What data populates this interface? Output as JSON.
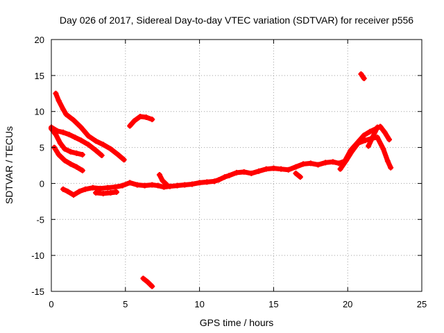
{
  "chart_data": {
    "type": "scatter",
    "title": "Day 026 of 2017, Sidereal Day-to-day VTEC variation (SDTVAR) for receiver p556",
    "xlabel": "GPS time / hours",
    "ylabel": "SDTVAR / TECUs",
    "xlim": [
      0,
      25
    ],
    "ylim": [
      -15,
      20
    ],
    "xticks": [
      0,
      5,
      10,
      15,
      20,
      25
    ],
    "xtick_labels": [
      "0",
      "5",
      "10",
      "15",
      "20",
      "25"
    ],
    "yticks": [
      -15,
      -10,
      -5,
      0,
      5,
      10,
      15,
      20
    ],
    "ytick_labels": [
      "-15",
      "-10",
      "-5",
      "0",
      "5",
      "10",
      "15",
      "20"
    ],
    "grid": true,
    "legend": "none",
    "marker_color": "#ff0000",
    "series": [
      {
        "name": "track-1",
        "points": [
          [
            0.3,
            12.5
          ],
          [
            0.5,
            11.5
          ],
          [
            0.8,
            10.3
          ],
          [
            1.0,
            9.6
          ],
          [
            1.5,
            8.8
          ],
          [
            2.0,
            7.8
          ],
          [
            2.5,
            6.6
          ],
          [
            3.0,
            5.9
          ],
          [
            3.5,
            5.4
          ],
          [
            4.0,
            4.8
          ],
          [
            4.5,
            4.0
          ],
          [
            4.9,
            3.3
          ]
        ]
      },
      {
        "name": "track-2",
        "points": [
          [
            0.0,
            7.8
          ],
          [
            0.4,
            7.3
          ],
          [
            0.8,
            7.1
          ],
          [
            1.2,
            6.8
          ],
          [
            1.6,
            6.4
          ],
          [
            2.0,
            6.0
          ],
          [
            2.5,
            5.4
          ],
          [
            3.0,
            4.6
          ],
          [
            3.4,
            3.9
          ]
        ]
      },
      {
        "name": "track-3",
        "points": [
          [
            0.0,
            7.6
          ],
          [
            0.3,
            6.8
          ],
          [
            0.6,
            5.6
          ],
          [
            0.9,
            4.8
          ],
          [
            1.3,
            4.4
          ],
          [
            1.7,
            4.2
          ],
          [
            2.1,
            4.0
          ]
        ]
      },
      {
        "name": "track-4",
        "points": [
          [
            0.2,
            5.0
          ],
          [
            0.5,
            4.0
          ],
          [
            0.9,
            3.2
          ],
          [
            1.3,
            2.7
          ],
          [
            1.7,
            2.3
          ],
          [
            2.1,
            1.8
          ]
        ]
      },
      {
        "name": "track-5",
        "points": [
          [
            5.3,
            8.0
          ],
          [
            5.6,
            8.7
          ],
          [
            6.0,
            9.3
          ],
          [
            6.4,
            9.2
          ],
          [
            6.8,
            8.9
          ]
        ]
      },
      {
        "name": "track-6",
        "points": [
          [
            6.2,
            -13.2
          ],
          [
            6.5,
            -13.7
          ],
          [
            6.8,
            -14.3
          ]
        ]
      },
      {
        "name": "track-7",
        "points": [
          [
            20.9,
            15.2
          ],
          [
            21.1,
            14.6
          ]
        ]
      },
      {
        "name": "track-8",
        "points": [
          [
            0.8,
            -0.8
          ],
          [
            1.1,
            -1.1
          ],
          [
            1.5,
            -1.6
          ],
          [
            1.9,
            -1.1
          ],
          [
            2.3,
            -0.8
          ],
          [
            2.8,
            -0.6
          ],
          [
            3.3,
            -0.7
          ],
          [
            3.8,
            -0.6
          ],
          [
            4.3,
            -0.5
          ],
          [
            4.8,
            -0.3
          ],
          [
            5.3,
            0.1
          ],
          [
            5.8,
            -0.2
          ],
          [
            6.3,
            -0.3
          ],
          [
            6.8,
            -0.2
          ],
          [
            7.2,
            -0.3
          ],
          [
            7.6,
            -0.5
          ],
          [
            8.0,
            -0.4
          ],
          [
            8.5,
            -0.3
          ],
          [
            9.0,
            -0.2
          ],
          [
            9.5,
            -0.1
          ],
          [
            10.0,
            0.1
          ],
          [
            10.5,
            0.2
          ],
          [
            11.0,
            0.3
          ],
          [
            11.3,
            0.5
          ],
          [
            11.7,
            0.9
          ],
          [
            12.0,
            1.1
          ],
          [
            12.5,
            1.5
          ],
          [
            13.0,
            1.6
          ],
          [
            13.5,
            1.4
          ],
          [
            14.0,
            1.7
          ],
          [
            14.5,
            2.0
          ],
          [
            15.0,
            2.1
          ],
          [
            15.5,
            2.0
          ],
          [
            16.0,
            1.9
          ],
          [
            16.5,
            2.3
          ],
          [
            17.0,
            2.7
          ],
          [
            17.5,
            2.8
          ],
          [
            18.0,
            2.6
          ],
          [
            18.5,
            2.9
          ],
          [
            19.0,
            3.0
          ],
          [
            19.4,
            2.8
          ],
          [
            19.8,
            3.1
          ],
          [
            20.2,
            4.6
          ],
          [
            20.5,
            5.3
          ],
          [
            20.8,
            6.0
          ],
          [
            21.1,
            6.7
          ],
          [
            21.5,
            7.2
          ],
          [
            21.9,
            7.6
          ],
          [
            22.2,
            7.9
          ],
          [
            22.5,
            7.1
          ],
          [
            22.8,
            6.1
          ]
        ]
      },
      {
        "name": "track-9",
        "points": [
          [
            3.0,
            -1.3
          ],
          [
            3.5,
            -1.4
          ],
          [
            4.0,
            -1.3
          ],
          [
            4.4,
            -1.2
          ]
        ]
      },
      {
        "name": "track-10",
        "points": [
          [
            7.3,
            1.2
          ],
          [
            7.5,
            0.4
          ],
          [
            7.8,
            -0.2
          ]
        ]
      },
      {
        "name": "track-11",
        "points": [
          [
            16.5,
            1.4
          ],
          [
            16.8,
            0.9
          ]
        ]
      },
      {
        "name": "track-12",
        "points": [
          [
            19.5,
            2.0
          ],
          [
            19.9,
            3.2
          ],
          [
            20.3,
            4.5
          ],
          [
            20.7,
            5.6
          ],
          [
            21.2,
            6.0
          ],
          [
            21.7,
            6.3
          ],
          [
            22.0,
            6.4
          ],
          [
            22.4,
            4.8
          ],
          [
            22.7,
            3.1
          ],
          [
            22.9,
            2.2
          ]
        ]
      },
      {
        "name": "track-13",
        "points": [
          [
            21.4,
            5.2
          ],
          [
            21.7,
            6.5
          ],
          [
            22.0,
            7.8
          ]
        ]
      }
    ]
  }
}
